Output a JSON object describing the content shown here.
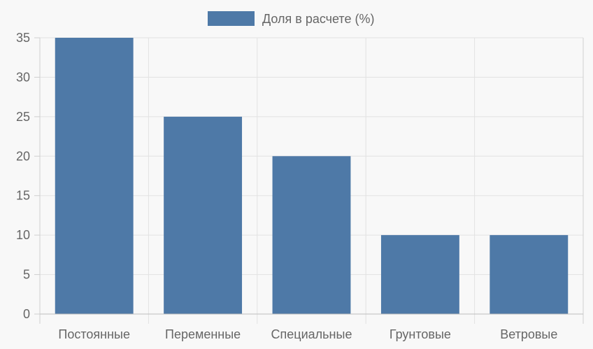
{
  "chart_data": {
    "type": "bar",
    "categories": [
      "Постоянные",
      "Переменные",
      "Специальные",
      "Грунтовые",
      "Ветровые"
    ],
    "series": [
      {
        "name": "Доля в расчете (%)",
        "values": [
          35,
          25,
          20,
          10,
          10
        ],
        "color": "#4e79a7"
      }
    ],
    "ylim": [
      0,
      35
    ],
    "yticks": [
      0,
      5,
      10,
      15,
      20,
      25,
      30,
      35
    ],
    "grid": true,
    "legend": "top-center"
  }
}
